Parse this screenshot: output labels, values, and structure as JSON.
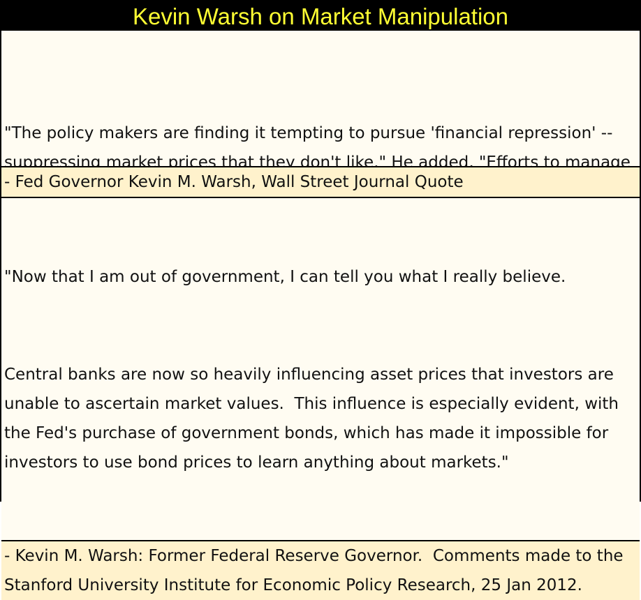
{
  "header": {
    "title": "Kevin Warsh on Market Manipulation"
  },
  "quotes": [
    {
      "paragraphs": [
        "\"The policy makers are finding it tempting to pursue 'financial repression' -- suppressing market prices that they don't like.\" He added, \"Efforts to manage and manipulate asset prices are not new.\""
      ],
      "attribution": "- Fed Governor Kevin M. Warsh, Wall Street Journal Quote"
    },
    {
      "paragraphs": [
        "\"Now that I am out of government, I can tell you what I really believe.",
        "Central banks are now so heavily influencing asset prices that investors are unable to ascertain market values.  This influence is especially evident, with the Fed's purchase of government bonds, which has made it impossible for investors to use bond prices to learn anything about markets.\""
      ],
      "attribution": "- Kevin M. Warsh: Former Federal Reserve Governor.  Comments made to the Stanford University Institute for Economic Policy Research, 25 Jan 2012."
    }
  ]
}
